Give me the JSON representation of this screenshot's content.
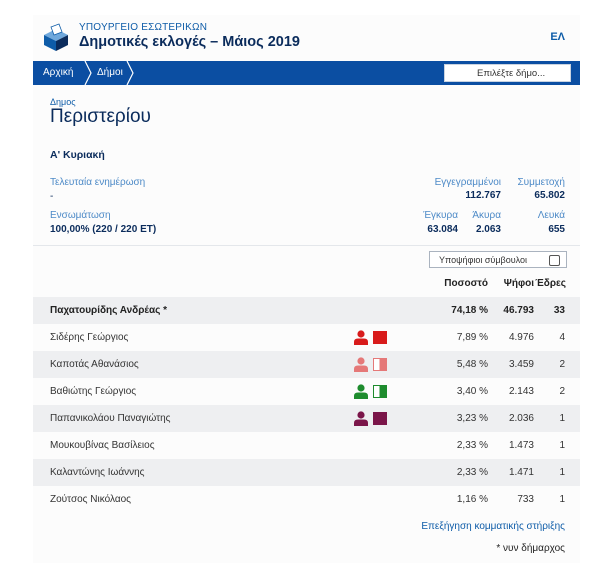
{
  "header": {
    "ministry": "ΥΠΟΥΡΓΕΙΟ ΕΣΩΤΕΡΙΚΩΝ",
    "title": "Δημοτικές εκλογές – Μάιος 2019",
    "lang": "ΕΛ"
  },
  "nav": {
    "crumbs": [
      "Αρχική",
      "Δήμοι"
    ],
    "search_placeholder": "Επιλέξτε δήμο..."
  },
  "municipality": {
    "label": "Δημος",
    "name": "Περιστερίου"
  },
  "round": "Α' Κυριακή",
  "stats": {
    "last_update_label": "Τελευταία ενημέρωση",
    "last_update_value": "-",
    "registered_label": "Εγγεγραμμένοι",
    "registered_value": "112.767",
    "turnout_label": "Συμμετοχή",
    "turnout_value": "65.802",
    "integration_label": "Ενσωμάτωση",
    "integration_value": "100,00% (220 / 220 ΕΤ)",
    "valid_label": "Έγκυρα",
    "valid_value": "63.084",
    "invalid_label": "Άκυρα",
    "invalid_value": "2.063",
    "blank_label": "Λευκά",
    "blank_value": "655"
  },
  "councillors_toggle": {
    "label": "Υποψήφιοι σύμβουλοι",
    "checked": false
  },
  "table": {
    "headers": {
      "percent": "Ποσοστό",
      "votes": "Ψήφοι",
      "seats": "Έδρες"
    },
    "rows": [
      {
        "name": "Παχατουρίδης Ανδρέας *",
        "percent": "74,18 %",
        "votes": "46.793",
        "seats": "33",
        "icon": null
      },
      {
        "name": "Σιδέρης Γεώργιος",
        "percent": "7,89 %",
        "votes": "4.976",
        "seats": "4",
        "icon": {
          "person": "#d81b1b",
          "flag": [
            "#d81b1b",
            "#d81b1b"
          ]
        }
      },
      {
        "name": "Καποτάς Αθανάσιος",
        "percent": "5,48 %",
        "votes": "3.459",
        "seats": "2",
        "icon": {
          "person": "#e57878",
          "flag": [
            "#ffffff",
            "#e57878"
          ]
        }
      },
      {
        "name": "Βαθιώτης Γεώργιος",
        "percent": "3,40 %",
        "votes": "2.143",
        "seats": "2",
        "icon": {
          "person": "#1e8c2e",
          "flag": [
            "#ffffff",
            "#1e8c2e"
          ]
        }
      },
      {
        "name": "Παπανικολάου Παναγιώτης",
        "percent": "3,23 %",
        "votes": "2.036",
        "seats": "1",
        "icon": {
          "person": "#7a1549",
          "flag": [
            "#7a1549",
            "#7a1549"
          ]
        }
      },
      {
        "name": "Μουκουβίνας Βασίλειος",
        "percent": "2,33 %",
        "votes": "1.473",
        "seats": "1",
        "icon": null
      },
      {
        "name": "Καλαντώνης Ιωάννης",
        "percent": "2,33 %",
        "votes": "1.471",
        "seats": "1",
        "icon": null
      },
      {
        "name": "Ζούτσος Νικόλαος",
        "percent": "1,16 %",
        "votes": "733",
        "seats": "1",
        "icon": null
      }
    ]
  },
  "footer": {
    "link": "Επεξήγηση κομματικής στήριξης",
    "note": "* νυν δήμαρχος"
  },
  "colors": {
    "nav": "#0b4ea2",
    "title": "#0b2c5c",
    "link": "#0e5ca8",
    "label": "#4d8ac7"
  }
}
